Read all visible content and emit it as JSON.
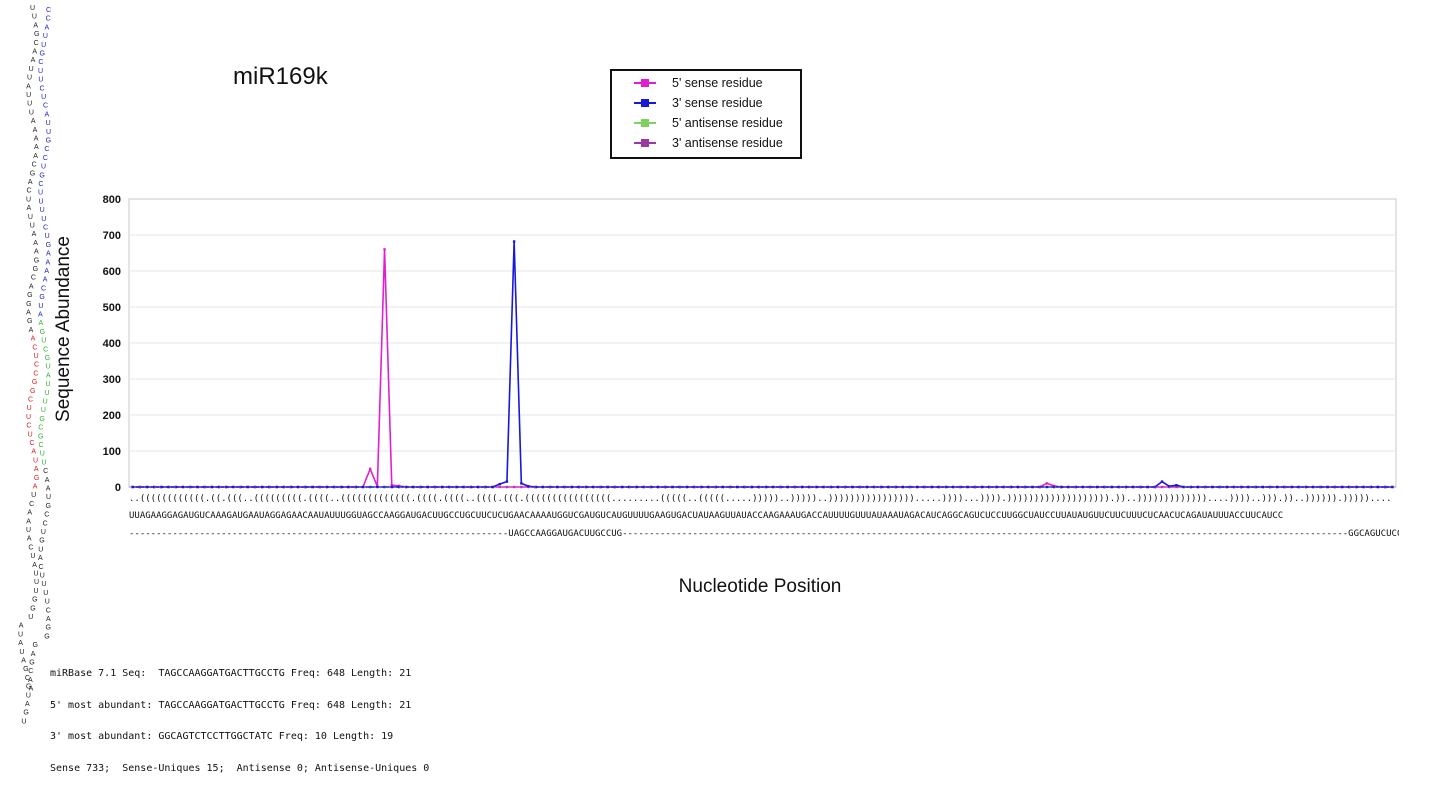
{
  "chart_data": {
    "type": "line",
    "title": "miR169k",
    "xlabel": "Nucleotide Position",
    "ylabel": "Sequence Abundance",
    "ylim": [
      0,
      800
    ],
    "yticks": [
      "0",
      "100",
      "200",
      "300",
      "400",
      "500",
      "600",
      "700",
      "800"
    ],
    "grid": true,
    "legend_placement": "top-center",
    "n_positions": 176,
    "series": [
      {
        "name": "5' sense residue",
        "color": "#e020d0",
        "points": [
          [
            33,
            50
          ],
          [
            34,
            2
          ],
          [
            35,
            660
          ],
          [
            36,
            5
          ],
          [
            37,
            3
          ],
          [
            127,
            10
          ],
          [
            128,
            3
          ]
        ]
      },
      {
        "name": "3' sense residue",
        "color": "#1818d8",
        "points": [
          [
            51,
            8
          ],
          [
            52,
            15
          ],
          [
            53,
            682
          ],
          [
            54,
            10
          ],
          [
            55,
            2
          ],
          [
            143,
            15
          ],
          [
            144,
            2
          ],
          [
            145,
            5
          ]
        ]
      },
      {
        "name": "5' antisense residue",
        "color": "#80d060",
        "points": []
      },
      {
        "name": "3' antisense residue",
        "color": "#9a3aa0",
        "points": []
      }
    ]
  },
  "structure_line": "..((((((((((((.((.(((..(((((((((.((((..(((((((((((((.((((.((((..((((.(((.((((((((((((((((.........(((((..(((((.....)))))..)))))..)))))))))))))))).....))))...)))).))))))))))))))))))).))..)))))))))))))....))))..))).))..)))))).)))))....",
  "sequence_line": "UUAGAAGGAGAUGUCAAAGAUGAAUAGGAGAACAAUAUUUGGUAGCCAAGGAUGACUUGCCUGCUUCUCUGAACAAAAUGGUCGAUGUCAUGUUUUGAAGUGACUAUAAGUUAUACCAAGAAAUGACCAUUUUGUUUAUAAAUAGACAUCAGGCAGUCUCCUUGGCUAUCCUUAUAUGUUCUUCUUUCUCAACUCAGAUAUUUACCUUCAUCC",
  "mature_line": "----------------------------------------------------------------------UAGCCAAGGAUGACUUGCCUG--------------------------------------------------------------------------------------------------------------------------------------GGCAGUCUCCUUGGCUAUC----------------------------------------------------------------------",
  "stats": [
    "miRBase 7.1 Seq:  TAGCCAAGGATGACTTGCCTG Freq: 648 Length: 21",
    "5' most abundant: TAGCCAAGGATGACTTGCCTG Freq: 648 Length: 21",
    "3' most abundant: GGCAGTCTCCTTGGCTATC Freq: 10 Length: 19",
    "Sense 733;  Sense-Uniques 15;  Antisense 0; Antisense-Uniques 0"
  ],
  "hairpin": {
    "left": "UUAGCAAUUAUUUAAAAACGACUAUUAAAGGCAGGAGAACUCCGGCUUCUCAUAGAUCAAUACUAUUUGGUAUAUAGCGUAGU",
    "right": "CCAUUGCUUCUCAUUGCCUGCUUUUCUGAAAACGUAAGUCGUAUUUUGCGCUUCAAUGCCUGUACUUUUCAGGGAGCAA"
  }
}
